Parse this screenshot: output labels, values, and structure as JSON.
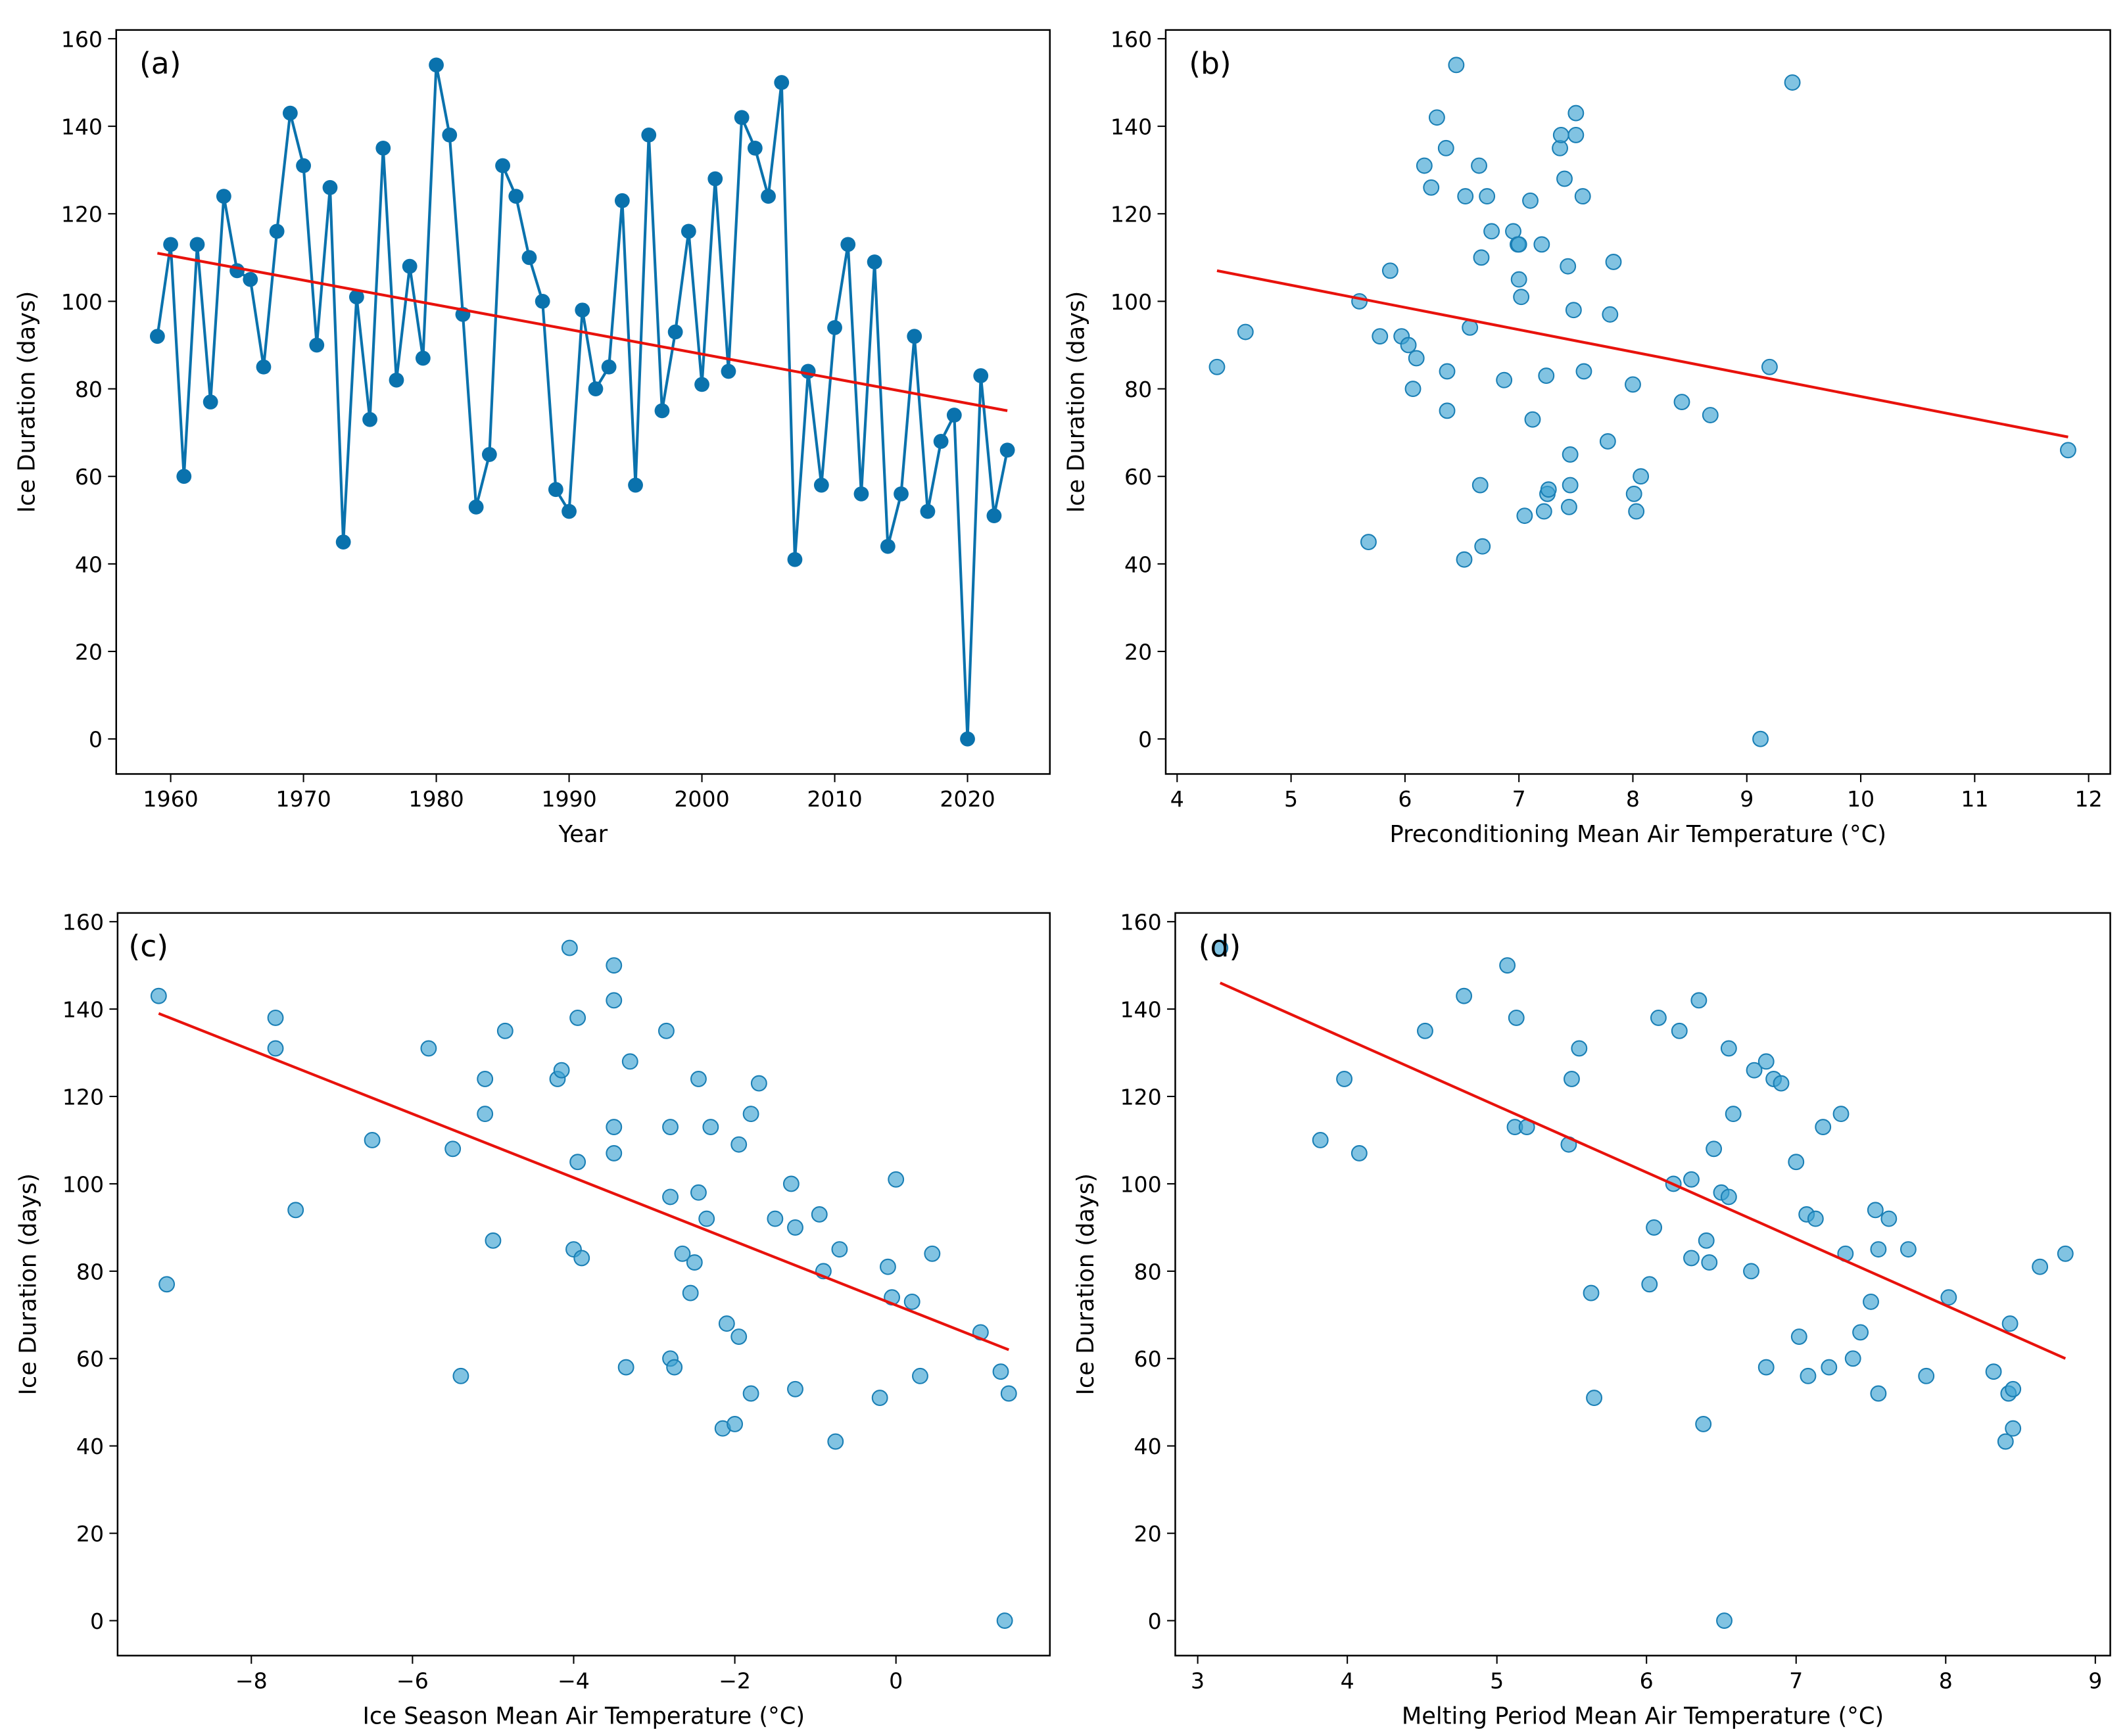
{
  "chart_data": [
    {
      "type": "line",
      "annotation": "(a)",
      "xlabel": "Year",
      "ylabel": "Ice Duration (days)",
      "xlim": [
        1955.9,
        2026.2
      ],
      "ylim": [
        -8,
        162
      ],
      "xticks": [
        1960,
        1970,
        1980,
        1990,
        2000,
        2010,
        2020
      ],
      "yticks": [
        0,
        20,
        40,
        60,
        80,
        100,
        120,
        140,
        160
      ],
      "series": [
        {
          "color": "#0a72ad",
          "x": [
            1959,
            1960,
            1961,
            1962,
            1963,
            1964,
            1965,
            1966,
            1967,
            1968,
            1969,
            1970,
            1971,
            1972,
            1973,
            1974,
            1975,
            1976,
            1977,
            1978,
            1979,
            1980,
            1981,
            1982,
            1983,
            1984,
            1985,
            1986,
            1987,
            1988,
            1989,
            1990,
            1991,
            1992,
            1993,
            1994,
            1995,
            1996,
            1997,
            1998,
            1999,
            2000,
            2001,
            2002,
            2003,
            2004,
            2005,
            2006,
            2007,
            2008,
            2009,
            2010,
            2011,
            2012,
            2013,
            2014,
            2015,
            2016,
            2017,
            2018,
            2019,
            2020,
            2021,
            2022,
            2023
          ],
          "values": [
            92,
            113,
            60,
            113,
            77,
            124,
            107,
            105,
            85,
            116,
            143,
            131,
            90,
            126,
            45,
            101,
            73,
            135,
            82,
            108,
            87,
            154,
            138,
            97,
            53,
            65,
            131,
            124,
            110,
            100,
            57,
            52,
            98,
            80,
            85,
            123,
            58,
            138,
            75,
            93,
            116,
            81,
            128,
            84,
            142,
            135,
            124,
            150,
            41,
            84,
            58,
            94,
            113,
            56,
            109,
            44,
            56,
            92,
            52,
            68,
            74,
            0,
            83,
            51,
            66
          ]
        }
      ],
      "trend": {
        "color": "#e8120c",
        "x": [
          1959,
          2023
        ],
        "values": [
          111,
          75
        ]
      }
    },
    {
      "type": "scatter",
      "annotation": "(b)",
      "xlabel": "Preconditioning Mean Air Temperature (°C)",
      "ylabel": "Ice Duration (days)",
      "xlim": [
        3.9,
        12.19
      ],
      "ylim": [
        -8,
        162
      ],
      "xticks": [
        4,
        5,
        6,
        7,
        8,
        9,
        10,
        11,
        12
      ],
      "yticks": [
        0,
        20,
        40,
        60,
        80,
        100,
        120,
        140,
        160
      ],
      "series": [
        {
          "color": "#3ea3d3",
          "x": [
            4.35,
            4.6,
            5.6,
            5.68,
            5.78,
            5.87,
            5.97,
            6.03,
            6.07,
            6.1,
            6.17,
            6.23,
            6.28,
            6.36,
            6.37,
            6.37,
            6.45,
            6.52,
            6.53,
            6.57,
            6.65,
            6.66,
            6.67,
            6.68,
            6.72,
            6.76,
            6.87,
            6.95,
            6.99,
            7.0,
            7.0,
            7.02,
            7.05,
            7.1,
            7.12,
            7.2,
            7.22,
            7.24,
            7.25,
            7.26,
            7.36,
            7.37,
            7.4,
            7.43,
            7.44,
            7.45,
            7.45,
            7.48,
            7.5,
            7.5,
            7.56,
            7.57,
            7.78,
            7.8,
            7.83,
            8.0,
            8.01,
            8.03,
            8.07,
            8.43,
            8.68,
            9.12,
            9.2,
            9.4,
            11.82
          ],
          "values": [
            85,
            93,
            100,
            45,
            92,
            107,
            92,
            90,
            80,
            87,
            131,
            126,
            142,
            135,
            84,
            75,
            154,
            41,
            124,
            94,
            131,
            58,
            110,
            44,
            124,
            116,
            82,
            116,
            113,
            113,
            105,
            101,
            51,
            123,
            73,
            113,
            52,
            83,
            56,
            57,
            135,
            138,
            128,
            108,
            53,
            58,
            65,
            98,
            143,
            138,
            124,
            84,
            68,
            97,
            109,
            81,
            56,
            52,
            60,
            77,
            74,
            0,
            85,
            150,
            66
          ]
        }
      ],
      "trend": {
        "color": "#e8120c",
        "x": [
          4.35,
          11.82
        ],
        "values": [
          107,
          69
        ]
      }
    },
    {
      "type": "scatter",
      "annotation": "(c)",
      "xlabel": "Ice Season Mean Air Temperature (°C)",
      "ylabel": "Ice Duration (days)",
      "xlim": [
        -9.66,
        1.91
      ],
      "ylim": [
        -8,
        162
      ],
      "xticks": [
        {
          "value": -8,
          "label": "−8"
        },
        {
          "value": -6,
          "label": "−6"
        },
        {
          "value": -4,
          "label": "−4"
        },
        {
          "value": -2,
          "label": "−2"
        },
        0
      ],
      "yticks": [
        0,
        20,
        40,
        60,
        80,
        100,
        120,
        140,
        160
      ],
      "series": [
        {
          "color": "#3ea3d3",
          "x": [
            -9.15,
            -9.05,
            -7.7,
            -7.7,
            -7.45,
            -6.5,
            -5.8,
            -5.5,
            -5.4,
            -5.1,
            -5.1,
            -5.0,
            -4.85,
            -4.2,
            -4.15,
            -4.05,
            -4.0,
            -3.95,
            -3.95,
            -3.9,
            -3.5,
            -3.5,
            -3.5,
            -3.5,
            -3.35,
            -3.3,
            -2.85,
            -2.8,
            -2.8,
            -2.8,
            -2.75,
            -2.65,
            -2.55,
            -2.5,
            -2.45,
            -2.45,
            -2.35,
            -2.3,
            -2.15,
            -2.1,
            -2.0,
            -1.95,
            -1.95,
            -1.8,
            -1.8,
            -1.7,
            -1.5,
            -1.3,
            -1.25,
            -1.25,
            -0.95,
            -0.9,
            -0.75,
            -0.7,
            -0.2,
            -0.1,
            -0.05,
            0.0,
            0.2,
            0.3,
            0.45,
            1.05,
            1.3,
            1.35,
            1.4
          ],
          "values": [
            143,
            77,
            138,
            131,
            94,
            110,
            131,
            108,
            56,
            124,
            116,
            87,
            135,
            124,
            126,
            154,
            85,
            138,
            105,
            83,
            150,
            142,
            113,
            107,
            58,
            128,
            135,
            97,
            113,
            60,
            58,
            84,
            75,
            82,
            124,
            98,
            92,
            113,
            44,
            68,
            45,
            65,
            109,
            116,
            52,
            123,
            92,
            100,
            90,
            53,
            93,
            80,
            41,
            85,
            51,
            81,
            74,
            101,
            73,
            56,
            84,
            66,
            57,
            0,
            52
          ]
        }
      ],
      "trend": {
        "color": "#e8120c",
        "x": [
          -9.15,
          1.4
        ],
        "values": [
          139,
          62
        ]
      }
    },
    {
      "type": "scatter",
      "annotation": "(d)",
      "xlabel": "Melting Period Mean Air Temperature (°C)",
      "ylabel": "Ice Duration (days)",
      "xlim": [
        2.85,
        9.1
      ],
      "ylim": [
        -8,
        162
      ],
      "xticks": [
        3,
        4,
        5,
        6,
        7,
        8,
        9
      ],
      "yticks": [
        0,
        20,
        40,
        60,
        80,
        100,
        120,
        140,
        160
      ],
      "series": [
        {
          "color": "#3ea3d3",
          "x": [
            3.15,
            3.82,
            3.98,
            4.08,
            4.52,
            4.78,
            5.07,
            5.12,
            5.13,
            5.2,
            5.48,
            5.5,
            5.55,
            5.63,
            5.65,
            6.02,
            6.05,
            6.08,
            6.18,
            6.22,
            6.3,
            6.3,
            6.35,
            6.38,
            6.4,
            6.42,
            6.45,
            6.5,
            6.52,
            6.55,
            6.55,
            6.58,
            6.7,
            6.72,
            6.8,
            6.8,
            6.85,
            6.9,
            7.0,
            7.02,
            7.07,
            7.08,
            7.13,
            7.18,
            7.22,
            7.3,
            7.33,
            7.38,
            7.43,
            7.5,
            7.53,
            7.55,
            7.55,
            7.62,
            7.75,
            7.87,
            8.02,
            8.32,
            8.4,
            8.42,
            8.43,
            8.45,
            8.45,
            8.63,
            8.8
          ],
          "values": [
            154,
            110,
            124,
            107,
            135,
            143,
            150,
            113,
            138,
            113,
            109,
            124,
            131,
            75,
            51,
            77,
            90,
            138,
            100,
            135,
            83,
            101,
            142,
            45,
            87,
            82,
            108,
            98,
            0,
            97,
            131,
            116,
            80,
            126,
            128,
            58,
            124,
            123,
            105,
            65,
            93,
            56,
            92,
            113,
            58,
            116,
            84,
            60,
            66,
            73,
            94,
            85,
            52,
            92,
            85,
            56,
            74,
            57,
            41,
            52,
            68,
            53,
            44,
            81,
            84
          ]
        }
      ],
      "trend": {
        "color": "#e8120c",
        "x": [
          3.15,
          8.8
        ],
        "values": [
          146,
          60
        ]
      }
    }
  ]
}
